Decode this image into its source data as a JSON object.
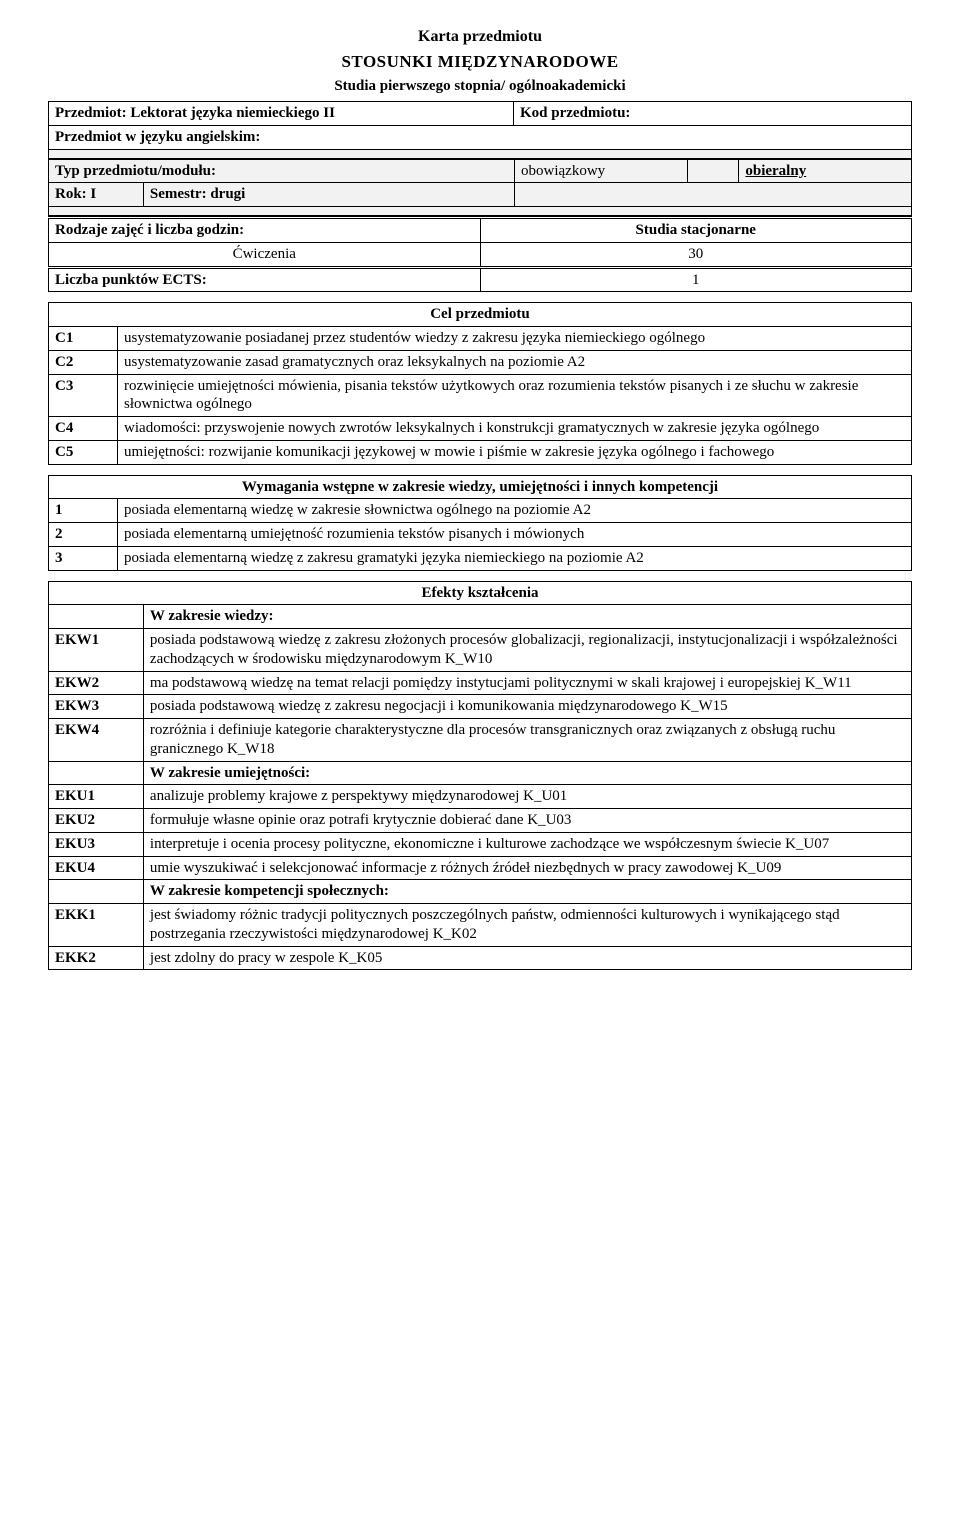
{
  "header": {
    "karta": "Karta przedmiotu",
    "stosunki": "STOSUNKI MIĘDZYNARODOWE",
    "studia": "Studia pierwszego stopnia/ ogólnoakademicki"
  },
  "meta": {
    "przedmiot_label": "Przedmiot:",
    "przedmiot_val": "Lektorat języka niemieckiego II",
    "kod_label": "Kod przedmiotu:",
    "kod_val": "",
    "jezyk_label": "Przedmiot w języku angielskim:",
    "jezyk_val": "",
    "typ_label": "Typ przedmiotu/modułu:",
    "typ_opt1": "obowiązkowy",
    "typ_opt2": "obieralny",
    "rok_label": "Rok:",
    "rok_val": "I",
    "semestr_label": "Semestr:",
    "semestr_val": "drugi",
    "rodzaje_label": "Rodzaje zajęć i liczba godzin:",
    "rodzaje_val": "Studia stacjonarne",
    "cwiczenia_label": "Ćwiczenia",
    "cwiczenia_val": "30",
    "ects_label": "Liczba punktów ECTS:",
    "ects_val": "1"
  },
  "cel": {
    "title": "Cel przedmiotu",
    "rows": [
      {
        "code": "C1",
        "text": "usystematyzowanie posiadanej przez studentów wiedzy z zakresu języka niemieckiego ogólnego"
      },
      {
        "code": "C2",
        "text": "usystematyzowanie zasad gramatycznych oraz leksykalnych na poziomie A2"
      },
      {
        "code": "C3",
        "text": "rozwinięcie umiejętności mówienia, pisania tekstów użytkowych oraz rozumienia tekstów pisanych i ze słuchu w zakresie słownictwa ogólnego"
      },
      {
        "code": "C4",
        "text": "wiadomości: przyswojenie nowych zwrotów leksykalnych i konstrukcji gramatycznych w zakresie języka ogólnego"
      },
      {
        "code": "C5",
        "text": "umiejętności: rozwijanie komunikacji językowej w mowie i piśmie w zakresie języka ogólnego i fachowego"
      }
    ]
  },
  "wymagania": {
    "title": "Wymagania wstępne w zakresie wiedzy, umiejętności i innych kompetencji",
    "rows": [
      {
        "code": "1",
        "text": "posiada elementarną wiedzę w zakresie słownictwa ogólnego na poziomie A2"
      },
      {
        "code": "2",
        "text": "posiada elementarną umiejętność rozumienia tekstów pisanych i mówionych"
      },
      {
        "code": "3",
        "text": "posiada elementarną wiedzę z zakresu gramatyki języka niemieckiego na poziomie A2"
      }
    ]
  },
  "efekty": {
    "title": "Efekty kształcenia",
    "wiedza_hdr": "W zakresie wiedzy:",
    "umiej_hdr": "W zakresie umiejętności:",
    "komp_hdr": "W zakresie kompetencji społecznych:",
    "wiedza": [
      {
        "code": "EKW1",
        "text": "posiada podstawową wiedzę z zakresu złożonych procesów globalizacji, regionalizacji, instytucjonalizacji i współzależności zachodzących w środowisku międzynarodowym  K_W10"
      },
      {
        "code": "EKW2",
        "text": "ma podstawową wiedzę na temat relacji pomiędzy instytucjami politycznymi w skali krajowej i europejskiej  K_W11"
      },
      {
        "code": "EKW3",
        "text": "posiada podstawową wiedzę z zakresu negocjacji i komunikowania międzynarodowego  K_W15"
      },
      {
        "code": "EKW4",
        "text": "rozróżnia i definiuje kategorie charakterystyczne dla procesów transgranicznych oraz związanych z obsługą ruchu granicznego  K_W18"
      }
    ],
    "umiej": [
      {
        "code": "EKU1",
        "text": "analizuje problemy krajowe z perspektywy międzynarodowej  K_U01"
      },
      {
        "code": "EKU2",
        "text": "formułuje własne opinie oraz potrafi krytycznie dobierać dane  K_U03"
      },
      {
        "code": "EKU3",
        "text": "interpretuje i ocenia procesy polityczne, ekonomiczne i kulturowe zachodzące we współczesnym świecie  K_U07"
      },
      {
        "code": "EKU4",
        "text": "umie wyszukiwać i selekcjonować informacje z różnych źródeł niezbędnych w pracy zawodowej  K_U09"
      }
    ],
    "komp": [
      {
        "code": "EKK1",
        "text": "jest świadomy różnic tradycji politycznych poszczególnych państw, odmienności kulturowych i wynikającego stąd postrzegania rzeczywistości międzynarodowej  K_K02"
      },
      {
        "code": "EKK2",
        "text": "jest zdolny do pracy w zespole  K_K05"
      }
    ]
  }
}
